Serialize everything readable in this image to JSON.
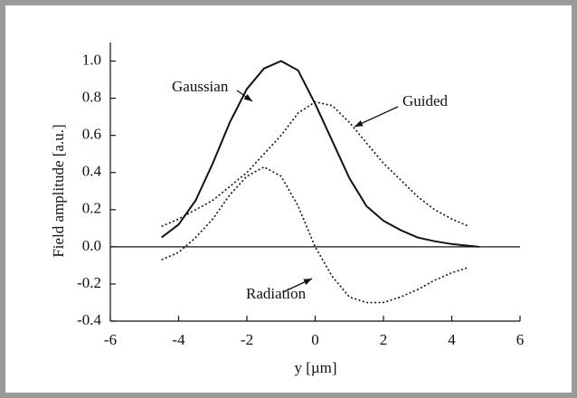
{
  "chart_data": {
    "type": "line",
    "xlabel": "y  [µm]",
    "ylabel": "Field amplitude [a.u.]",
    "xlim": [
      -6,
      6
    ],
    "xticks": [
      -6,
      -4,
      -2,
      0,
      2,
      4,
      6
    ],
    "ylim": [
      -0.4,
      1.1
    ],
    "yticks": [
      -0.4,
      -0.2,
      {
        "value": 0,
        "label": "0.0"
      },
      0.2,
      0.4,
      0.6,
      0.8,
      {
        "value": 1,
        "label": "1.0"
      }
    ],
    "series": [
      {
        "name": "Gaussian",
        "color": "#111111",
        "dash": "solid",
        "x": [
          -4.5,
          -4,
          -3.5,
          -3,
          -2.5,
          -2,
          -1.5,
          -1,
          -0.5,
          0,
          0.5,
          1,
          1.5,
          2,
          2.5,
          3,
          3.5,
          4,
          4.5,
          4.8
        ],
        "values": [
          0.05,
          0.12,
          0.25,
          0.45,
          0.67,
          0.85,
          0.96,
          1.0,
          0.95,
          0.77,
          0.57,
          0.37,
          0.22,
          0.14,
          0.09,
          0.05,
          0.03,
          0.015,
          0.005,
          0.0
        ]
      },
      {
        "name": "Guided",
        "color": "#111111",
        "dash": "dotted",
        "x": [
          -4.5,
          -4,
          -3,
          -2,
          -1,
          -0.5,
          0,
          0.5,
          1,
          1.5,
          2,
          2.5,
          3,
          3.5,
          4,
          4.5
        ],
        "values": [
          0.11,
          0.15,
          0.25,
          0.4,
          0.6,
          0.72,
          0.78,
          0.76,
          0.67,
          0.56,
          0.45,
          0.36,
          0.27,
          0.2,
          0.15,
          0.11
        ]
      },
      {
        "name": "Radiation",
        "color": "#111111",
        "dash": "dotted",
        "x": [
          -4.5,
          -4,
          -3.5,
          -3,
          -2.5,
          -2,
          -1.5,
          -1,
          -0.5,
          0,
          0.5,
          1,
          1.5,
          2,
          2.5,
          3,
          3.5,
          4,
          4.5
        ],
        "values": [
          -0.07,
          -0.03,
          0.05,
          0.15,
          0.28,
          0.38,
          0.43,
          0.38,
          0.22,
          0.0,
          -0.16,
          -0.27,
          -0.3,
          -0.3,
          -0.27,
          -0.23,
          -0.18,
          -0.14,
          -0.11
        ]
      }
    ]
  }
}
